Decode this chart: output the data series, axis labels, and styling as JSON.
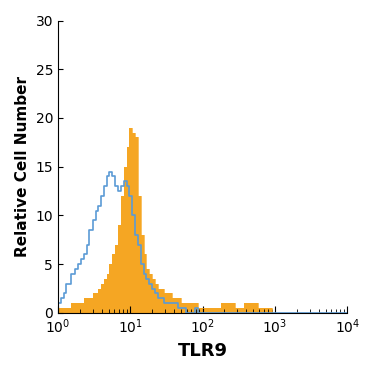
{
  "title": "",
  "xlabel": "TLR9",
  "ylabel": "Relative Cell Number",
  "xlim": [
    1,
    10000
  ],
  "ylim": [
    0,
    30
  ],
  "yticks": [
    0,
    5,
    10,
    15,
    20,
    25,
    30
  ],
  "blue_color": "#5b9bd5",
  "orange_color": "#f5a623",
  "background_color": "#ffffff",
  "blue_x": [
    1.0,
    1.1,
    1.2,
    1.3,
    1.5,
    1.7,
    1.9,
    2.1,
    2.3,
    2.5,
    2.7,
    3.0,
    3.3,
    3.6,
    3.9,
    4.3,
    4.7,
    5.1,
    5.6,
    6.2,
    6.8,
    7.4,
    8.1,
    8.9,
    9.7,
    10.6,
    11.6,
    12.7,
    13.9,
    15.2,
    16.7,
    18.2,
    20.0,
    21.9,
    24.0,
    26.3,
    28.8,
    31.5,
    34.5,
    37.8,
    41.4,
    45.3,
    49.6,
    54.3,
    59.5,
    65.2,
    71.4,
    78.2,
    85.7,
    93.9,
    102.8,
    112.6,
    123.4,
    135.2,
    148.2,
    162.4,
    177.9,
    194.9,
    213.6,
    234.0,
    256.5,
    281.1,
    308.0,
    337.5,
    369.8,
    405.3,
    444.0,
    486.5,
    533.2,
    584.2,
    640.3,
    701.6,
    768.9,
    842.6,
    923.4,
    1012.0,
    1109.0,
    1215.0,
    1331.0,
    1459.0,
    1600.0,
    1754.0,
    1922.0,
    2107.0,
    2309.0,
    2530.0,
    2774.0,
    3040.0,
    3331.0,
    3651.0,
    4002.0,
    4386.0,
    4808.0,
    5271.0,
    5780.0,
    6340.0,
    6950.0,
    7620.0,
    8350.0,
    9160.0,
    10000.0
  ],
  "blue_y": [
    0.5,
    1.0,
    1.5,
    2.0,
    3.0,
    4.0,
    4.5,
    5.0,
    5.5,
    6.0,
    7.0,
    8.5,
    9.5,
    10.5,
    11.0,
    12.0,
    13.0,
    14.0,
    14.5,
    14.0,
    13.0,
    12.5,
    13.0,
    13.5,
    13.0,
    12.0,
    10.0,
    8.0,
    7.0,
    5.0,
    4.0,
    3.5,
    3.0,
    2.5,
    2.0,
    1.5,
    1.5,
    1.0,
    1.0,
    1.0,
    1.0,
    1.0,
    0.5,
    0.5,
    0.5,
    0.0,
    0.0,
    0.0,
    0.5,
    0.0,
    0.0,
    0.0,
    0.0,
    0.0,
    0.0,
    0.0,
    0.0,
    0.0,
    0.0,
    0.0,
    0.0,
    0.0,
    0.0,
    0.0,
    0.0,
    0.0,
    0.0,
    0.0,
    0.0,
    0.0,
    0.0,
    0.0,
    0.0,
    0.0,
    0.0,
    0.0,
    0.0,
    0.0,
    0.0,
    0.0,
    0.0,
    0.0,
    0.0,
    0.0,
    0.0,
    0.0,
    0.0,
    0.0,
    0.0,
    0.0,
    0.0,
    0.0,
    0.0,
    0.0,
    0.0,
    0.0,
    0.0,
    0.0,
    0.0,
    0.0,
    0.0
  ],
  "orange_x": [
    1.0,
    1.1,
    1.2,
    1.3,
    1.5,
    1.7,
    1.9,
    2.1,
    2.3,
    2.5,
    2.7,
    3.0,
    3.3,
    3.6,
    3.9,
    4.3,
    4.7,
    5.1,
    5.6,
    6.2,
    6.8,
    7.4,
    8.1,
    8.9,
    9.7,
    10.6,
    11.6,
    12.7,
    13.9,
    15.2,
    16.7,
    18.2,
    20.0,
    21.9,
    24.0,
    26.3,
    28.8,
    31.5,
    34.5,
    37.8,
    41.4,
    45.3,
    49.6,
    54.3,
    59.5,
    65.2,
    71.4,
    78.2,
    85.7,
    93.9,
    102.8,
    112.6,
    123.4,
    135.2,
    148.2,
    162.4,
    177.9,
    194.9,
    213.6,
    234.0,
    256.5,
    281.1,
    308.0,
    337.5,
    369.8,
    405.3,
    444.0,
    486.5,
    533.2,
    584.2,
    640.3,
    701.6,
    768.9,
    842.6,
    923.4,
    1012.0,
    1109.0,
    1215.0,
    1331.0,
    1459.0,
    1600.0,
    1754.0,
    1922.0,
    2107.0,
    2309.0,
    2530.0,
    2774.0,
    3040.0,
    3331.0,
    3651.0,
    4002.0,
    4386.0,
    4808.0,
    5271.0,
    5780.0,
    6340.0,
    6950.0,
    7620.0,
    8350.0,
    9160.0,
    10000.0
  ],
  "orange_y": [
    0.5,
    0.5,
    0.5,
    0.5,
    0.5,
    1.0,
    1.0,
    1.0,
    1.0,
    1.5,
    1.5,
    1.5,
    2.0,
    2.0,
    2.5,
    3.0,
    3.5,
    4.0,
    5.0,
    6.0,
    7.0,
    9.0,
    12.0,
    15.0,
    17.0,
    19.0,
    18.5,
    18.0,
    12.0,
    8.0,
    6.0,
    4.5,
    4.0,
    3.5,
    3.0,
    2.5,
    2.5,
    2.0,
    2.0,
    2.0,
    1.5,
    1.5,
    1.5,
    1.0,
    1.0,
    1.0,
    1.0,
    1.0,
    1.0,
    0.5,
    0.5,
    0.5,
    0.5,
    0.5,
    0.5,
    0.5,
    0.5,
    1.0,
    1.0,
    1.0,
    1.0,
    1.0,
    0.5,
    0.5,
    0.5,
    1.0,
    1.0,
    1.0,
    1.0,
    1.0,
    0.5,
    0.5,
    0.5,
    0.5,
    0.5,
    0.0,
    0.0,
    0.0,
    0.0,
    0.0,
    0.0,
    0.0,
    0.0,
    0.0,
    0.0,
    0.0,
    0.0,
    0.0,
    0.0,
    0.0,
    0.0,
    0.0,
    0.0,
    0.0,
    0.0,
    0.0,
    0.0,
    0.0,
    0.0,
    0.0,
    0.0
  ]
}
